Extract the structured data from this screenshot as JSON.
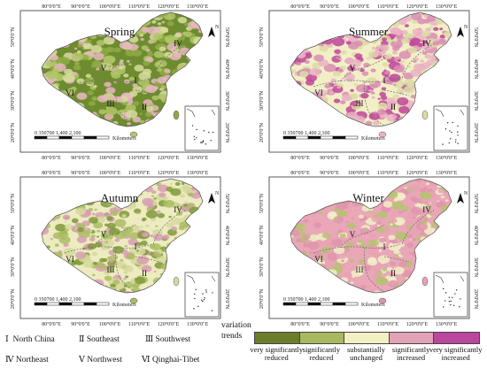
{
  "panels": [
    {
      "key": "spring",
      "title": "Spring",
      "pal": [
        "#6e8c2f",
        "#8faa45",
        "#b2c56a",
        "#d8dc9f",
        "#e8b6c0"
      ]
    },
    {
      "key": "summer",
      "title": "Summer",
      "pal": [
        "#f2efc7",
        "#dcdca6",
        "#eab3c3",
        "#d98cb3",
        "#c0459a"
      ]
    },
    {
      "key": "autumn",
      "title": "Autumn",
      "pal": [
        "#edebc0",
        "#d6d99e",
        "#a9bd63",
        "#7f9a3a",
        "#d89cb4"
      ]
    },
    {
      "key": "winter",
      "title": "Winter",
      "pal": [
        "#e9a7b7",
        "#e8a3b4",
        "#df95ac",
        "#f1eec8",
        "#b3c46d"
      ]
    }
  ],
  "lon_labels": [
    "80°0'0\"E",
    "90°0'0\"E",
    "100°0'0\"E",
    "110°0'0\"E",
    "120°0'0\"E",
    "130°0'0\"E"
  ],
  "lat_labels": [
    "50°0'0\"N",
    "40°0'0\"N",
    "30°0'0\"N",
    "20°0'0\"N"
  ],
  "north_label": "N",
  "scalebar": {
    "ticks": "0  350700    1,400   2,100",
    "unit": "Kilometers"
  },
  "region_numerals": {
    "r1": "I",
    "r2": "II",
    "r3": "III",
    "r4": "IV",
    "r5": "V",
    "r6": "VI"
  },
  "regions": [
    {
      "numeral": "Ⅰ",
      "name": "North China"
    },
    {
      "numeral": "Ⅱ",
      "name": "Southeast"
    },
    {
      "numeral": "Ⅲ",
      "name": "Southwest"
    },
    {
      "numeral": "Ⅳ",
      "name": "Northeast"
    },
    {
      "numeral": "Ⅴ",
      "name": "Northwest"
    },
    {
      "numeral": "Ⅵ",
      "name": "Qinghai-Tibet"
    }
  ],
  "legend": {
    "title_line1": "variation",
    "title_line2": "trends",
    "classes": [
      {
        "label": "very significantly reduced",
        "color": "#6b7f2b"
      },
      {
        "label": "significantly reduced",
        "color": "#a8b85e"
      },
      {
        "label": "substantially unchanged",
        "color": "#f3f0c4"
      },
      {
        "label": "significantly increased",
        "color": "#e3a3b6"
      },
      {
        "label": "very significantly increased",
        "color": "#b9479c"
      }
    ]
  }
}
